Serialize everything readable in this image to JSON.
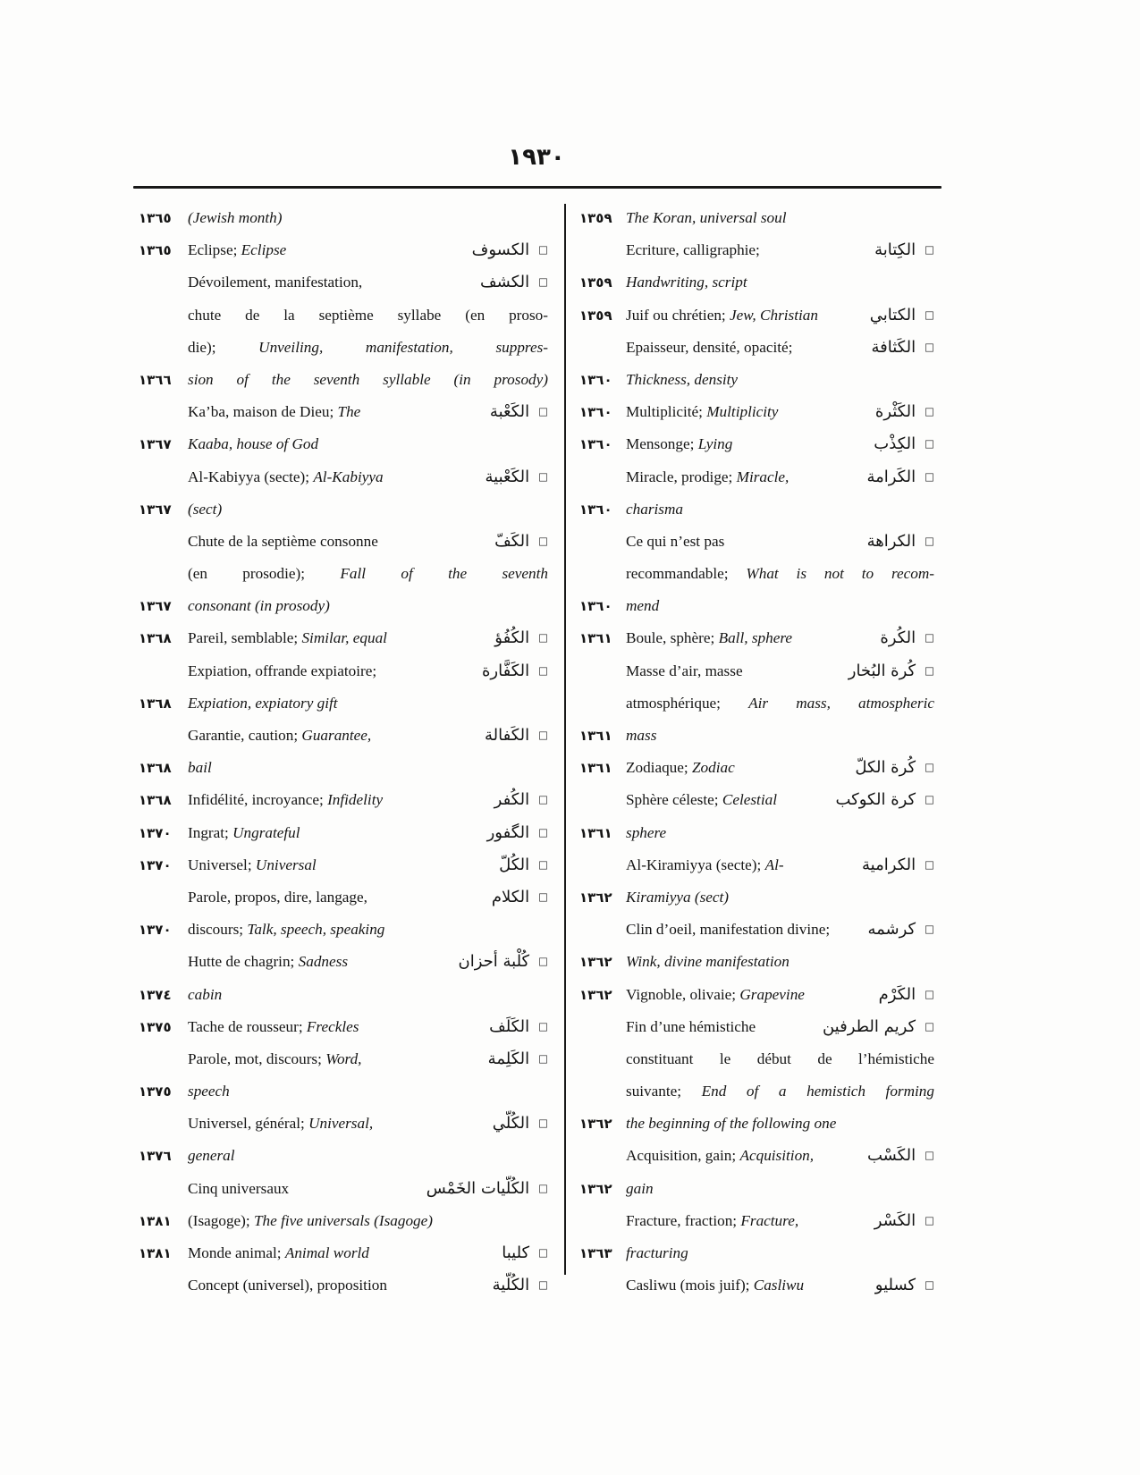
{
  "page": {
    "number_label": "١٩٣٠"
  },
  "ui": {
    "marker": "□"
  },
  "colors": {
    "ink": "#151515",
    "paper": "#fdfdfc"
  },
  "columns": {
    "left": [
      {
        "n": "١٣٦٥",
        "s": [
          [
            "(Jewish month)",
            1
          ]
        ]
      },
      {
        "n": "١٣٦٥",
        "s": [
          [
            "Eclipse; ",
            0
          ],
          [
            "Eclipse",
            1
          ]
        ],
        "a": "الكسوف"
      },
      {
        "s": [
          [
            "Dévoilement, manifestation,",
            0
          ]
        ],
        "a": "الكشف"
      },
      {
        "s": [
          [
            "chute de la septième syllabe (en proso-",
            0
          ]
        ],
        "j": 1
      },
      {
        "s": [
          [
            "die); ",
            0
          ],
          [
            "Unveiling, manifestation, suppres-",
            1
          ]
        ],
        "j": 1
      },
      {
        "n": "١٣٦٦",
        "s": [
          [
            "sion of the seventh syllable (in prosody)",
            1
          ]
        ],
        "j": 1
      },
      {
        "s": [
          [
            "Ka’ba, maison de Dieu; ",
            0
          ],
          [
            "The",
            1
          ]
        ],
        "a": "الكَعْبة"
      },
      {
        "n": "١٣٦٧",
        "s": [
          [
            "Kaaba, house of God",
            1
          ]
        ]
      },
      {
        "s": [
          [
            "Al-Kabiyya (secte); ",
            0
          ],
          [
            "Al-Kabiyya",
            1
          ]
        ],
        "a": "الكَعْبية"
      },
      {
        "n": "١٣٦٧",
        "s": [
          [
            "(sect)",
            1
          ]
        ]
      },
      {
        "s": [
          [
            "Chute de la septième consonne",
            0
          ]
        ],
        "a": "الكَفّ"
      },
      {
        "s": [
          [
            "(en prosodie); ",
            0
          ],
          [
            "Fall of the seventh",
            1
          ]
        ],
        "j": 1
      },
      {
        "n": "١٣٦٧",
        "s": [
          [
            "consonant (in prosody)",
            1
          ]
        ]
      },
      {
        "n": "١٣٦٨",
        "s": [
          [
            "Pareil, semblable; ",
            0
          ],
          [
            "Similar, equal",
            1
          ]
        ],
        "a": "الكُفُؤ"
      },
      {
        "s": [
          [
            "Expiation, offrande expiatoire;",
            0
          ]
        ],
        "a": "الكَفَّارة"
      },
      {
        "n": "١٣٦٨",
        "s": [
          [
            "Expiation, expiatory gift",
            1
          ]
        ]
      },
      {
        "s": [
          [
            "Garantie, caution; ",
            0
          ],
          [
            "Guarantee,",
            1
          ]
        ],
        "a": "الكَفالة"
      },
      {
        "n": "١٣٦٨",
        "s": [
          [
            "bail",
            1
          ]
        ]
      },
      {
        "n": "١٣٦٨",
        "s": [
          [
            "Infidélité, incroyance; ",
            0
          ],
          [
            "Infidelity",
            1
          ]
        ],
        "a": "الكُفر"
      },
      {
        "n": "١٣٧٠",
        "s": [
          [
            "Ingrat; ",
            0
          ],
          [
            "Ungrateful",
            1
          ]
        ],
        "a": "الگفور"
      },
      {
        "n": "١٣٧٠",
        "s": [
          [
            "Universel; ",
            0
          ],
          [
            "Universal",
            1
          ]
        ],
        "a": "الكُلّ"
      },
      {
        "s": [
          [
            "Parole, propos, dire, langage,",
            0
          ]
        ],
        "a": "الكلام"
      },
      {
        "n": "١٣٧٠",
        "s": [
          [
            "discours; ",
            0
          ],
          [
            "Talk, speech, speaking",
            1
          ]
        ]
      },
      {
        "s": [
          [
            "Hutte de chagrin; ",
            0
          ],
          [
            "Sadness",
            1
          ]
        ],
        "a": "كُلْبة أحزان"
      },
      {
        "n": "١٣٧٤",
        "s": [
          [
            "cabin",
            1
          ]
        ]
      },
      {
        "n": "١٣٧٥",
        "s": [
          [
            "Tache de rousseur; ",
            0
          ],
          [
            "Freckles",
            1
          ]
        ],
        "a": "الكَلَف"
      },
      {
        "s": [
          [
            "Parole, mot, discours; ",
            0
          ],
          [
            "Word,",
            1
          ]
        ],
        "a": "الكَلِمة"
      },
      {
        "n": "١٣٧٥",
        "s": [
          [
            "speech",
            1
          ]
        ]
      },
      {
        "s": [
          [
            "Universel, général; ",
            0
          ],
          [
            "Universal,",
            1
          ]
        ],
        "a": "الكُلّي"
      },
      {
        "n": "١٣٧٦",
        "s": [
          [
            "general",
            1
          ]
        ]
      },
      {
        "s": [
          [
            "Cinq universaux",
            0
          ]
        ],
        "a": "الكُلّيات الخَمْس"
      },
      {
        "n": "١٣٨١",
        "s": [
          [
            "(Isagoge); ",
            0
          ],
          [
            "The five universals (Isagoge)",
            1
          ]
        ]
      },
      {
        "n": "١٣٨١",
        "s": [
          [
            "Monde animal; ",
            0
          ],
          [
            "Animal world",
            1
          ]
        ],
        "a": "كليبا"
      },
      {
        "s": [
          [
            "Concept (universel), proposition",
            0
          ]
        ],
        "a": "الكُلّية"
      }
    ],
    "right": [
      {
        "n": "١٣٥٩",
        "s": [
          [
            "The Koran, universal soul",
            1
          ]
        ]
      },
      {
        "s": [
          [
            "Ecriture, calligraphie;",
            0
          ]
        ],
        "a": "الكِتابة"
      },
      {
        "n": "١٣٥٩",
        "s": [
          [
            "Handwriting, script",
            1
          ]
        ]
      },
      {
        "n": "١٣٥٩",
        "s": [
          [
            "Juif ou chrétien; ",
            0
          ],
          [
            "Jew, Christian",
            1
          ]
        ],
        "a": "الكتابي"
      },
      {
        "s": [
          [
            "Epaisseur, densité, opacité;",
            0
          ]
        ],
        "a": "الكَثافة"
      },
      {
        "n": "١٣٦٠",
        "s": [
          [
            "Thickness, density",
            1
          ]
        ]
      },
      {
        "n": "١٣٦٠",
        "s": [
          [
            "Multiplicité; ",
            0
          ],
          [
            "Multiplicity",
            1
          ]
        ],
        "a": "الكَثْرة"
      },
      {
        "n": "١٣٦٠",
        "s": [
          [
            "Mensonge; ",
            0
          ],
          [
            "Lying",
            1
          ]
        ],
        "a": "الكِذْب"
      },
      {
        "s": [
          [
            "Miracle, prodige; ",
            0
          ],
          [
            "Miracle,",
            1
          ]
        ],
        "a": "الكَرامة"
      },
      {
        "n": "١٣٦٠",
        "s": [
          [
            "charisma",
            1
          ]
        ]
      },
      {
        "s": [
          [
            "Ce qui n’est pas",
            0
          ]
        ],
        "a": "الكراهة"
      },
      {
        "s": [
          [
            "recommandable; ",
            0
          ],
          [
            "What is not to recom-",
            1
          ]
        ],
        "j": 1
      },
      {
        "n": "١٣٦٠",
        "s": [
          [
            "mend",
            1
          ]
        ]
      },
      {
        "n": "١٣٦١",
        "s": [
          [
            "Boule, sphère; ",
            0
          ],
          [
            "Ball, sphere",
            1
          ]
        ],
        "a": "الكُرة"
      },
      {
        "s": [
          [
            "Masse d’air, masse",
            0
          ]
        ],
        "a": "كُرة البُخار"
      },
      {
        "s": [
          [
            "atmosphérique; ",
            0
          ],
          [
            "Air mass, atmospheric",
            1
          ]
        ],
        "j": 1
      },
      {
        "n": "١٣٦١",
        "s": [
          [
            "mass",
            1
          ]
        ]
      },
      {
        "n": "١٣٦١",
        "s": [
          [
            "Zodiaque; ",
            0
          ],
          [
            "Zodiac",
            1
          ]
        ],
        "a": "كُرة الكلّ"
      },
      {
        "s": [
          [
            "Sphère céleste; ",
            0
          ],
          [
            "Celestial",
            1
          ]
        ],
        "a": "كرة الكوكب"
      },
      {
        "n": "١٣٦١",
        "s": [
          [
            "sphere",
            1
          ]
        ]
      },
      {
        "s": [
          [
            "Al-Kiramiyya (secte); ",
            0
          ],
          [
            "Al-",
            1
          ]
        ],
        "a": "الكرامية"
      },
      {
        "n": "١٣٦٢",
        "s": [
          [
            "Kiramiyya (sect)",
            1
          ]
        ]
      },
      {
        "s": [
          [
            "Clin d’oeil, manifestation divine;",
            0
          ]
        ],
        "a": "كرشمه"
      },
      {
        "n": "١٣٦٢",
        "s": [
          [
            "Wink, divine manifestation",
            1
          ]
        ]
      },
      {
        "n": "١٣٦٢",
        "s": [
          [
            "Vignoble, olivaie; ",
            0
          ],
          [
            "Grapevine",
            1
          ]
        ],
        "a": "الكَرْم"
      },
      {
        "s": [
          [
            "Fin d’une hémistiche",
            0
          ]
        ],
        "a": "كريم الطرفين"
      },
      {
        "s": [
          [
            "constituant le début de l’hémistiche",
            0
          ]
        ],
        "j": 1
      },
      {
        "s": [
          [
            "suivante; ",
            0
          ],
          [
            "End of a hemistich forming",
            1
          ]
        ],
        "j": 1
      },
      {
        "n": "١٣٦٢",
        "s": [
          [
            "the beginning of the following one",
            1
          ]
        ]
      },
      {
        "s": [
          [
            "Acquisition, gain; ",
            0
          ],
          [
            "Acquisition,",
            1
          ]
        ],
        "a": "الكَسْب"
      },
      {
        "n": "١٣٦٢",
        "s": [
          [
            "gain",
            1
          ]
        ]
      },
      {
        "s": [
          [
            "Fracture, fraction; ",
            0
          ],
          [
            "Fracture,",
            1
          ]
        ],
        "a": "الكَسْر"
      },
      {
        "n": "١٣٦٣",
        "s": [
          [
            "fracturing",
            1
          ]
        ]
      },
      {
        "s": [
          [
            "Casliwu (mois juif); ",
            0
          ],
          [
            "Casliwu",
            1
          ]
        ],
        "a": "كسليو"
      }
    ]
  }
}
